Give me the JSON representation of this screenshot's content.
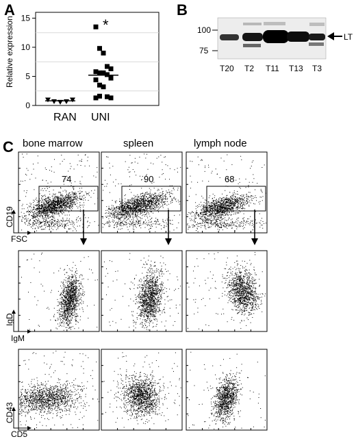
{
  "panels": {
    "a": {
      "label": "A"
    },
    "b": {
      "label": "B"
    },
    "c": {
      "label": "C"
    }
  },
  "chart_data": [
    {
      "type": "scatter",
      "panel": "A",
      "ylabel": "Relative expression",
      "yticks": [
        "0",
        "5",
        "10",
        "15"
      ],
      "ylim": [
        0,
        16
      ],
      "categories": [
        "RAN",
        "UNI"
      ],
      "annotation": "*",
      "series": [
        {
          "category": "RAN",
          "marker": "triangle-down",
          "values": [
            1.0,
            0.7,
            0.6,
            0.7,
            1.0
          ],
          "median": 0.8
        },
        {
          "category": "UNI",
          "marker": "square",
          "values": [
            13.5,
            9.8,
            9.0,
            6.7,
            6.3,
            5.8,
            5.6,
            5.6,
            5.3,
            4.7,
            4.4,
            3.5,
            3.2,
            1.5,
            1.3,
            1.3,
            1.6
          ],
          "median": 5.2
        }
      ]
    }
  ],
  "blot": {
    "mw_markers": [
      "100",
      "75"
    ],
    "lanes": [
      "T20",
      "T2",
      "T11",
      "T13",
      "T3"
    ],
    "arrow_label": "LT"
  },
  "flow": {
    "columns": [
      "bone marrow",
      "spleen",
      "lymph node"
    ],
    "gate_percents": [
      "74",
      "90",
      "68"
    ],
    "rows": [
      {
        "yaxis": "CD19",
        "xaxis": "FSC"
      },
      {
        "yaxis": "IgD",
        "xaxis": "IgM"
      },
      {
        "yaxis": "CD43",
        "xaxis": "CD5"
      }
    ]
  }
}
